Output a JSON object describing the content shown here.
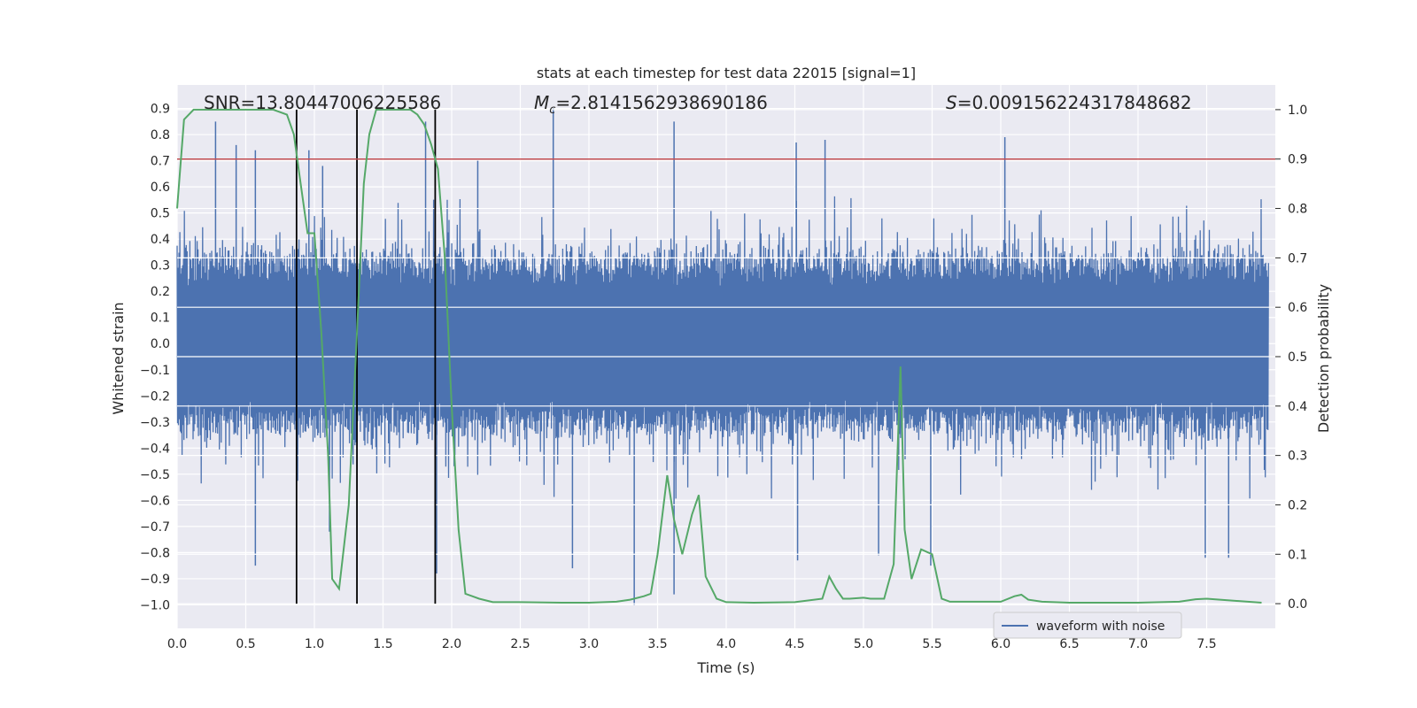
{
  "chart_data": {
    "type": "line",
    "title": "stats at each timestep for test data 22015 [signal=1]",
    "xlabel": "Time (s)",
    "ylabel_left": "Whitened strain",
    "ylabel_right": "Detection probability",
    "xlim": [
      0.0,
      8.0
    ],
    "ylim_left": [
      -1.09,
      0.99
    ],
    "ylim_right": [
      -0.05,
      1.05
    ],
    "x_ticks": [
      "0.0",
      "0.5",
      "1.0",
      "1.5",
      "2.0",
      "2.5",
      "3.0",
      "3.5",
      "4.0",
      "4.5",
      "5.0",
      "5.5",
      "6.0",
      "6.5",
      "7.0",
      "7.5"
    ],
    "y_ticks_left": [
      "0.9",
      "0.8",
      "0.7",
      "0.6",
      "0.5",
      "0.4",
      "0.3",
      "0.2",
      "0.1",
      "0.0",
      "-0.1",
      "-0.2",
      "-0.3",
      "-0.4",
      "-0.5",
      "-0.6",
      "-0.7",
      "-0.8",
      "-0.9",
      "-1.0"
    ],
    "y_ticks_right": [
      "1.0",
      "0.9",
      "0.8",
      "0.7",
      "0.6",
      "0.5",
      "0.4",
      "0.3",
      "0.2",
      "0.1",
      "0.0"
    ],
    "annotations": {
      "snr": "SNR=13.80447006225586",
      "mc_symbol": "M",
      "mc_sub": "c",
      "mc_value": "=2.8141562938690186",
      "s_symbol": "S",
      "s_value": "=0.009156224317848682"
    },
    "threshold": {
      "value": 0.9,
      "axis": "right",
      "color": "#c44e52"
    },
    "vertical_lines": [
      0.87,
      1.31,
      1.88
    ],
    "legend": {
      "label": "waveform with noise",
      "placement": "lower-right"
    },
    "series": [
      {
        "name": "waveform with noise",
        "axis": "left",
        "color": "#4c72b0",
        "style": "dense noise, amplitude ~0.32 core with spikes",
        "spikes": [
          {
            "x": 0.28,
            "y": 0.85
          },
          {
            "x": 0.43,
            "y": 0.76
          },
          {
            "x": 0.57,
            "y": 0.74
          },
          {
            "x": 0.57,
            "y": -0.85
          },
          {
            "x": 0.96,
            "y": 0.74
          },
          {
            "x": 1.06,
            "y": 0.68
          },
          {
            "x": 1.11,
            "y": -0.72
          },
          {
            "x": 1.81,
            "y": 0.85
          },
          {
            "x": 1.89,
            "y": -0.88
          },
          {
            "x": 2.19,
            "y": 0.7
          },
          {
            "x": 2.74,
            "y": 0.9
          },
          {
            "x": 2.88,
            "y": -0.86
          },
          {
            "x": 3.33,
            "y": -1.0
          },
          {
            "x": 3.62,
            "y": 0.85
          },
          {
            "x": 3.62,
            "y": -0.96
          },
          {
            "x": 4.51,
            "y": 0.77
          },
          {
            "x": 4.72,
            "y": 0.78
          },
          {
            "x": 4.52,
            "y": -0.83
          },
          {
            "x": 5.11,
            "y": -0.81
          },
          {
            "x": 5.49,
            "y": -0.85
          },
          {
            "x": 6.03,
            "y": 0.79
          },
          {
            "x": 7.49,
            "y": -0.82
          },
          {
            "x": 7.66,
            "y": -0.82
          }
        ]
      },
      {
        "name": "detection probability",
        "axis": "right",
        "color": "#55a868",
        "x": [
          0.0,
          0.05,
          0.12,
          0.2,
          0.3,
          0.4,
          0.5,
          0.6,
          0.7,
          0.8,
          0.85,
          0.9,
          0.95,
          1.0,
          1.05,
          1.1,
          1.13,
          1.18,
          1.25,
          1.31,
          1.36,
          1.4,
          1.45,
          1.5,
          1.6,
          1.7,
          1.75,
          1.8,
          1.85,
          1.9,
          1.95,
          2.0,
          2.05,
          2.1,
          2.15,
          2.2,
          2.3,
          2.5,
          2.8,
          3.0,
          3.2,
          3.3,
          3.4,
          3.45,
          3.5,
          3.57,
          3.62,
          3.68,
          3.75,
          3.8,
          3.85,
          3.93,
          4.0,
          4.2,
          4.5,
          4.7,
          4.75,
          4.8,
          4.85,
          4.9,
          5.0,
          5.05,
          5.1,
          5.15,
          5.22,
          5.27,
          5.3,
          5.35,
          5.42,
          5.5,
          5.57,
          5.63,
          5.7,
          5.8,
          6.0,
          6.1,
          6.15,
          6.2,
          6.3,
          6.5,
          7.0,
          7.3,
          7.42,
          7.5,
          7.9
        ],
        "y": [
          0.8,
          0.98,
          1.0,
          1.0,
          1.0,
          1.0,
          1.0,
          1.0,
          1.0,
          0.99,
          0.95,
          0.85,
          0.75,
          0.75,
          0.55,
          0.3,
          0.05,
          0.03,
          0.2,
          0.55,
          0.85,
          0.95,
          1.0,
          1.0,
          1.0,
          1.0,
          0.99,
          0.97,
          0.93,
          0.88,
          0.7,
          0.4,
          0.15,
          0.02,
          0.015,
          0.01,
          0.003,
          0.003,
          0.002,
          0.002,
          0.004,
          0.008,
          0.015,
          0.02,
          0.1,
          0.26,
          0.17,
          0.1,
          0.18,
          0.22,
          0.055,
          0.01,
          0.003,
          0.002,
          0.003,
          0.01,
          0.055,
          0.03,
          0.01,
          0.01,
          0.012,
          0.01,
          0.01,
          0.01,
          0.08,
          0.48,
          0.15,
          0.05,
          0.11,
          0.1,
          0.01,
          0.004,
          0.004,
          0.004,
          0.004,
          0.015,
          0.018,
          0.008,
          0.004,
          0.002,
          0.002,
          0.004,
          0.009,
          0.01,
          0.002
        ]
      }
    ]
  }
}
